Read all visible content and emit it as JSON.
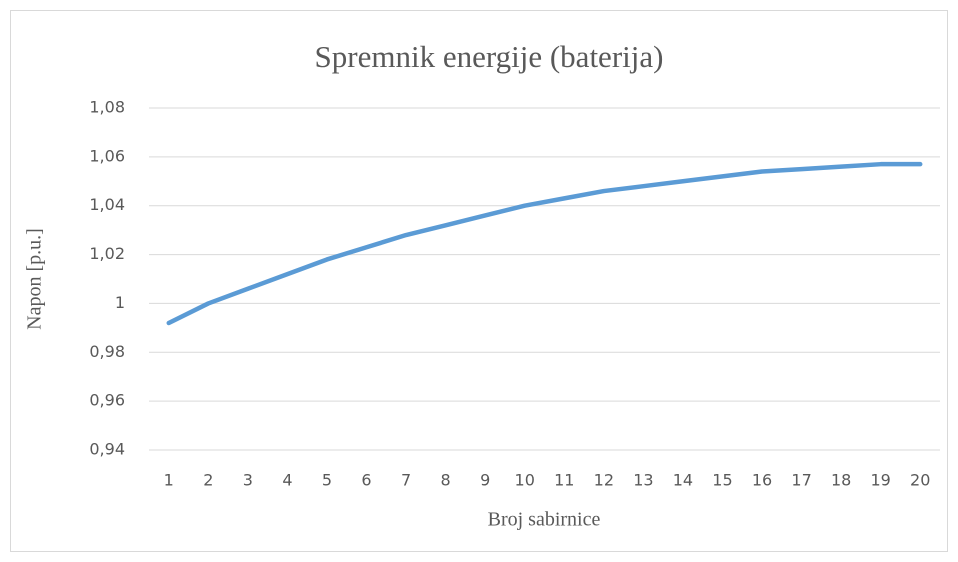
{
  "chart_data": {
    "type": "line",
    "title": "Spremnik energije (baterija)",
    "xlabel": "Broj sabirnice",
    "ylabel": "Napon [p.u.]",
    "categories": [
      "1",
      "2",
      "3",
      "4",
      "5",
      "6",
      "7",
      "8",
      "9",
      "10",
      "11",
      "12",
      "13",
      "14",
      "15",
      "16",
      "17",
      "18",
      "19",
      "20"
    ],
    "series": [
      {
        "name": "Napon",
        "color": "#5b9bd5",
        "values": [
          0.992,
          1.0,
          1.006,
          1.012,
          1.018,
          1.023,
          1.028,
          1.032,
          1.036,
          1.04,
          1.043,
          1.046,
          1.048,
          1.05,
          1.052,
          1.054,
          1.055,
          1.056,
          1.057,
          1.057
        ]
      }
    ],
    "ylim": [
      0.94,
      1.08
    ],
    "yticks": [
      {
        "value": 0.94,
        "label": "0,94"
      },
      {
        "value": 0.96,
        "label": "0,96"
      },
      {
        "value": 0.98,
        "label": "0,98"
      },
      1,
      {
        "value": 1.02,
        "label": "1,02"
      },
      {
        "value": 1.04,
        "label": "1,04"
      },
      {
        "value": 1.06,
        "label": "1,06"
      },
      {
        "value": 1.08,
        "label": "1,08"
      }
    ],
    "grid": true
  }
}
